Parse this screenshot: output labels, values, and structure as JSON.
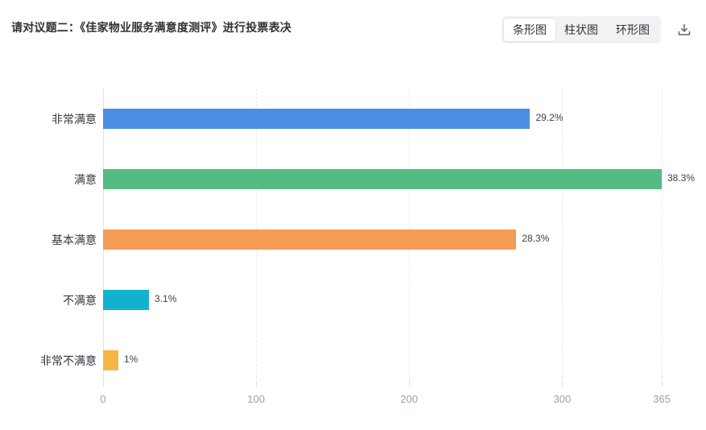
{
  "header": {
    "title": "请对议题二：《佳家物业服务满意度测评》进行投票表决",
    "chart_type_options": [
      {
        "label": "条形图",
        "selected": true
      },
      {
        "label": "柱状图",
        "selected": false
      },
      {
        "label": "环形图",
        "selected": false
      }
    ],
    "download_icon": "download-icon"
  },
  "chart_data": {
    "type": "bar",
    "orientation": "horizontal",
    "title": "",
    "categories": [
      "非常满意",
      "满意",
      "基本满意",
      "不满意",
      "非常不满意"
    ],
    "values": [
      279,
      365,
      270,
      30,
      10
    ],
    "percent_labels": [
      "29.2%",
      "38.3%",
      "28.3%",
      "3.1%",
      "1%"
    ],
    "bar_colors": [
      "#4b8fe2",
      "#54bb84",
      "#f59d57",
      "#11b2cd",
      "#f6b544"
    ],
    "x_ticks": [
      0,
      100,
      200,
      300,
      365
    ],
    "xlim": [
      0,
      365
    ],
    "xlabel": "",
    "ylabel": "",
    "grid": "vertical-dashed",
    "legend": "none",
    "colors": {
      "gridline": "#e4e7ed",
      "axis_line": "#e0e3e8",
      "tick_text": "#9aa1a9",
      "category_text": "#33373c",
      "value_text": "#3d4045"
    }
  }
}
